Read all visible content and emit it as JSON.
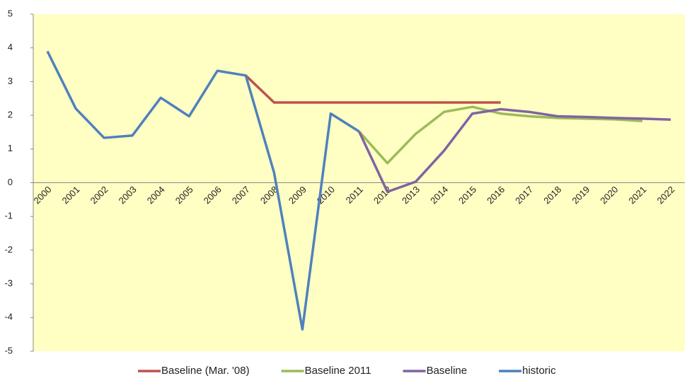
{
  "chart_data": {
    "type": "line",
    "categories": [
      "2000",
      "2001",
      "2002",
      "2003",
      "2004",
      "2005",
      "2006",
      "2007",
      "2008",
      "2009",
      "2010",
      "2011",
      "2012",
      "2013",
      "2014",
      "2015",
      "2016",
      "2017",
      "2018",
      "2019",
      "2020",
      "2021",
      "2022"
    ],
    "series": [
      {
        "name": "Baseline (Mar. '08)",
        "color": "#c0504d",
        "values": [
          null,
          null,
          null,
          null,
          null,
          null,
          null,
          3.18,
          2.38,
          2.38,
          2.38,
          2.38,
          2.38,
          2.38,
          2.38,
          2.38,
          2.38,
          null,
          null,
          null,
          null,
          null,
          null
        ]
      },
      {
        "name": "Baseline 2011",
        "color": "#9bbb59",
        "values": [
          null,
          null,
          null,
          null,
          null,
          null,
          null,
          null,
          null,
          null,
          null,
          1.52,
          0.58,
          1.45,
          2.1,
          2.25,
          2.05,
          1.97,
          1.92,
          1.9,
          1.88,
          1.83,
          null
        ]
      },
      {
        "name": "Baseline",
        "color": "#8064a2",
        "values": [
          null,
          null,
          null,
          null,
          null,
          null,
          null,
          null,
          null,
          null,
          null,
          1.52,
          -0.27,
          0.03,
          0.95,
          2.05,
          2.18,
          2.1,
          1.97,
          1.95,
          1.92,
          1.9,
          1.87
        ]
      },
      {
        "name": "historic",
        "color": "#4f81bd",
        "values": [
          3.9,
          2.2,
          1.33,
          1.4,
          2.52,
          1.97,
          3.32,
          3.18,
          0.3,
          -4.35,
          2.05,
          1.52,
          null,
          null,
          null,
          null,
          null,
          null,
          null,
          null,
          null,
          null,
          null
        ]
      }
    ],
    "ylim": [
      -5,
      5
    ],
    "yticks": [
      -5,
      -4,
      -3,
      -2,
      -1,
      0,
      1,
      2,
      3,
      4,
      5
    ],
    "legend": "bottom",
    "background": "#ffffc4"
  }
}
